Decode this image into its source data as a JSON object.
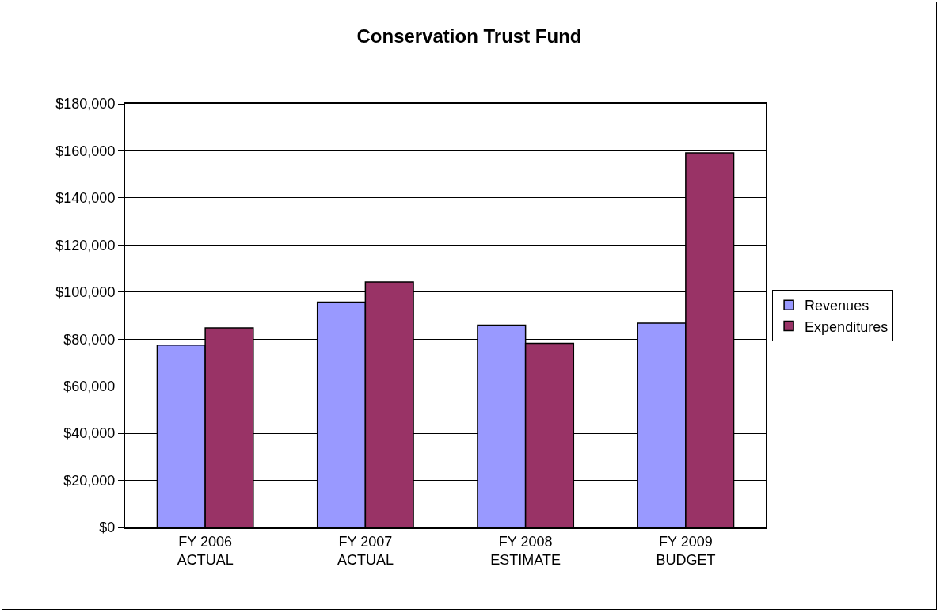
{
  "chart_data": {
    "type": "bar",
    "title": "Conservation Trust Fund",
    "categories": [
      "FY 2006\nACTUAL",
      "FY 2007\nACTUAL",
      "FY 2008\nESTIMATE",
      "FY 2009\nBUDGET"
    ],
    "series": [
      {
        "name": "Revenues",
        "color": "#9999ff",
        "values": [
          77500,
          95700,
          86000,
          86800
        ]
      },
      {
        "name": "Expenditures",
        "color": "#993366",
        "values": [
          84800,
          104300,
          78200,
          159100
        ]
      }
    ],
    "ylim": [
      0,
      180000
    ],
    "yticks": [
      {
        "value": 0,
        "label": "$0"
      },
      {
        "value": 20000,
        "label": "$20,000"
      },
      {
        "value": 40000,
        "label": "$40,000"
      },
      {
        "value": 60000,
        "label": "$60,000"
      },
      {
        "value": 80000,
        "label": "$80,000"
      },
      {
        "value": 100000,
        "label": "$100,000"
      },
      {
        "value": 120000,
        "label": "$120,000"
      },
      {
        "value": 140000,
        "label": "$140,000"
      },
      {
        "value": 160000,
        "label": "$160,000"
      },
      {
        "value": 180000,
        "label": "$180,000"
      }
    ],
    "grid": "y",
    "legend": "right"
  }
}
